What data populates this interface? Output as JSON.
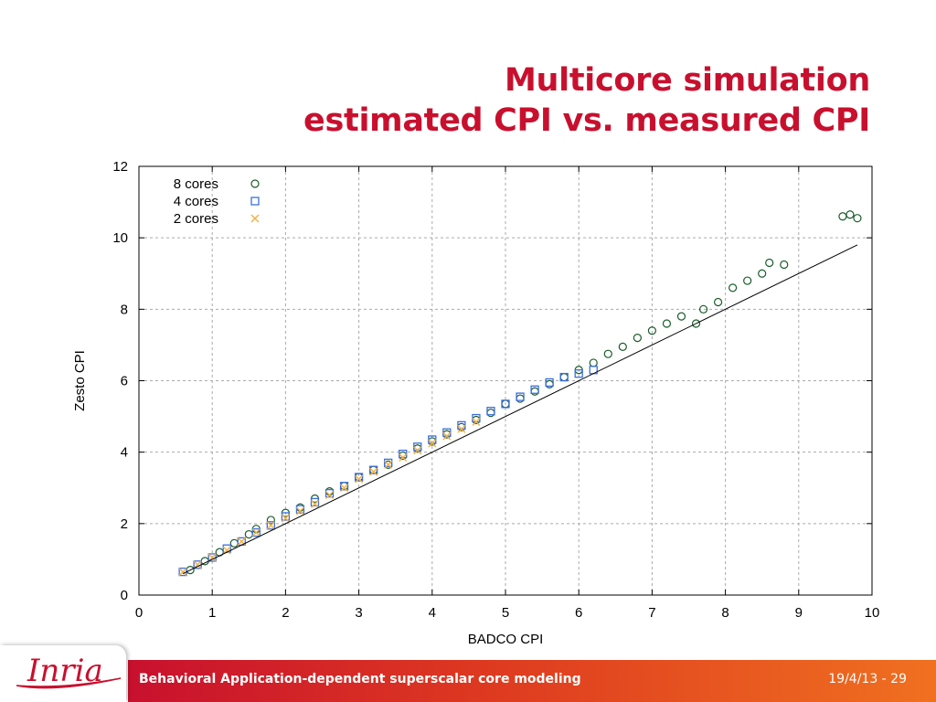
{
  "slide": {
    "title_line1": "Multicore simulation",
    "title_line2": "estimated CPI vs. measured CPI",
    "footer_text": "Behavioral Application-dependent superscalar core modeling",
    "footer_page": "19/4/13 - 29",
    "logo_text": "Inria",
    "colors": {
      "title": "#c8102e",
      "footer_start": "#c8102e",
      "footer_end": "#f07020"
    }
  },
  "chart_data": {
    "type": "scatter",
    "title": "",
    "xlabel": "BADCO CPI",
    "ylabel": "Zesto CPI",
    "xlim": [
      0,
      10
    ],
    "ylim": [
      0,
      12
    ],
    "xticks": [
      "0",
      "1",
      "2",
      "3",
      "4",
      "5",
      "6",
      "7",
      "8",
      "9",
      "10"
    ],
    "yticks": [
      "0",
      "2",
      "4",
      "6",
      "8",
      "10",
      "12"
    ],
    "grid": true,
    "legend_position": "top-left",
    "series": [
      {
        "name": "8 cores",
        "marker": "circle",
        "color": "#1a5c2a",
        "x": [
          0.7,
          0.9,
          1.1,
          1.3,
          1.5,
          1.6,
          1.8,
          2.0,
          2.2,
          2.4,
          2.6,
          2.8,
          3.0,
          3.2,
          3.4,
          3.6,
          3.8,
          4.0,
          4.2,
          4.4,
          4.6,
          4.8,
          5.0,
          5.2,
          5.4,
          5.6,
          5.8,
          6.0,
          6.2,
          6.4,
          6.6,
          6.8,
          7.0,
          7.2,
          7.4,
          7.6,
          7.7,
          7.9,
          8.1,
          8.3,
          8.5,
          8.6,
          8.8,
          9.6,
          9.7,
          9.8
        ],
        "y": [
          0.7,
          0.95,
          1.2,
          1.45,
          1.7,
          1.85,
          2.1,
          2.3,
          2.45,
          2.7,
          2.9,
          3.05,
          3.3,
          3.5,
          3.65,
          3.9,
          4.1,
          4.3,
          4.5,
          4.7,
          4.9,
          5.1,
          5.35,
          5.5,
          5.7,
          5.9,
          6.1,
          6.3,
          6.5,
          6.75,
          6.95,
          7.2,
          7.4,
          7.6,
          7.8,
          7.6,
          8.0,
          8.2,
          8.6,
          8.8,
          9.0,
          9.3,
          9.25,
          10.6,
          10.65,
          10.55
        ]
      },
      {
        "name": "4 cores",
        "marker": "square",
        "color": "#3b6fe0",
        "x": [
          0.6,
          0.8,
          1.0,
          1.2,
          1.4,
          1.6,
          1.8,
          2.0,
          2.2,
          2.4,
          2.6,
          2.8,
          3.0,
          3.2,
          3.4,
          3.6,
          3.8,
          4.0,
          4.2,
          4.4,
          4.6,
          4.8,
          5.0,
          5.2,
          5.4,
          5.6,
          5.8,
          6.0,
          6.2
        ],
        "y": [
          0.65,
          0.85,
          1.05,
          1.3,
          1.5,
          1.75,
          1.95,
          2.2,
          2.4,
          2.6,
          2.85,
          3.05,
          3.3,
          3.5,
          3.7,
          3.95,
          4.15,
          4.35,
          4.55,
          4.75,
          4.95,
          5.15,
          5.35,
          5.55,
          5.75,
          5.95,
          6.1,
          6.2,
          6.3
        ]
      },
      {
        "name": "2 cores",
        "marker": "x",
        "color": "#f5b041",
        "x": [
          0.6,
          0.8,
          1.0,
          1.2,
          1.4,
          1.6,
          1.8,
          2.0,
          2.2,
          2.4,
          2.6,
          2.8,
          3.0,
          3.2,
          3.4,
          3.6,
          3.8,
          4.0,
          4.2,
          4.4,
          4.6
        ],
        "y": [
          0.65,
          0.85,
          1.05,
          1.25,
          1.5,
          1.75,
          1.95,
          2.15,
          2.35,
          2.55,
          2.8,
          3.0,
          3.25,
          3.45,
          3.65,
          3.85,
          4.05,
          4.25,
          4.45,
          4.65,
          4.85
        ]
      }
    ],
    "fit_line": {
      "x": [
        0.6,
        9.8
      ],
      "y": [
        0.6,
        9.8
      ],
      "color": "#000000"
    }
  }
}
